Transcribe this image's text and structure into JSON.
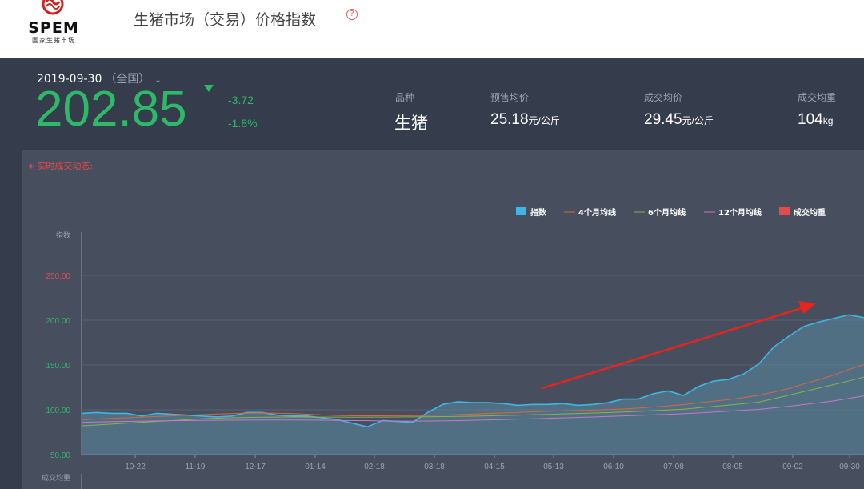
{
  "header": {
    "logo_text": "SPEM",
    "logo_sub": "国家生猪市场",
    "title": "生猪市场（交易）价格指数",
    "help_glyph": "?"
  },
  "summary": {
    "date": "2019-09-30",
    "region": "（全国）",
    "index_value": "202.85",
    "change_abs": "-3.72",
    "change_pct": "-1.8%",
    "variety_label": "品种",
    "variety_value": "生猪",
    "presale_label": "预售均价",
    "presale_value": "25.18",
    "presale_unit": "元/公斤",
    "deal_label": "成交均价",
    "deal_value": "29.45",
    "deal_unit": "元/公斤",
    "weight_label": "成交均重",
    "weight_value": "104",
    "weight_unit": "kg"
  },
  "ticker": {
    "label": "实时成交动态:"
  },
  "colors": {
    "index": "#3db7e4",
    "ma4": "#d9683e",
    "ma6": "#8fb04a",
    "ma12": "#c678c6",
    "weight": "#e84a4a",
    "up": "#2fb868",
    "arrow": "#e8241c"
  },
  "chart_data": {
    "type": "area",
    "ylabel": "指数",
    "ylabel2": "成交均重",
    "ylim": [
      50,
      250
    ],
    "y_ticks": [
      "250.00",
      "200.00",
      "150.00",
      "100.00",
      "50.00"
    ],
    "x_ticks": [
      "10-22",
      "11-19",
      "12-17",
      "01-14",
      "02-18",
      "03-18",
      "04-15",
      "05-13",
      "06-10",
      "07-08",
      "08-05",
      "09-02",
      "09-30"
    ],
    "legend_position": "top-right",
    "series": [
      {
        "name": "指数",
        "key": "index",
        "values": [
          96,
          97,
          96,
          96,
          93,
          96,
          95,
          94,
          93,
          92,
          93,
          97,
          97,
          94,
          93,
          93,
          91,
          89,
          85,
          81,
          88,
          87,
          86,
          97,
          106,
          109,
          108,
          108,
          107,
          105,
          106,
          106,
          107,
          105,
          106,
          108,
          112,
          112,
          118,
          121,
          116,
          126,
          132,
          134,
          140,
          151,
          170,
          182,
          193,
          198,
          202,
          206,
          202.85
        ]
      },
      {
        "name": "4个月均线",
        "key": "ma4",
        "values": [
          89,
          89.7,
          90.4,
          91.1,
          91.8,
          92.5,
          93.2,
          93.9,
          94.6,
          95.3,
          95.9,
          96.2,
          96.4,
          96.2,
          95.8,
          95.1,
          94.3,
          93.6,
          93.3,
          93.3,
          93.3,
          93.4,
          93.5,
          93.7,
          94.1,
          94.6,
          95.2,
          95.9,
          96.5,
          97.1,
          97.8,
          98.3,
          98.8,
          99.2,
          99.6,
          100.2,
          100.9,
          101.9,
          103.1,
          104.4,
          105.8,
          107.7,
          109.6,
          111.4,
          113.6,
          116.2,
          119.8,
          123.7,
          128.8,
          133.6,
          138.8,
          145.1,
          150.5
        ]
      },
      {
        "name": "6个月均线",
        "key": "ma6",
        "values": [
          82,
          83,
          84,
          85,
          86,
          87,
          88,
          89,
          90,
          90.6,
          91.1,
          91.4,
          91.7,
          91.9,
          92,
          91.9,
          91.8,
          91.8,
          91.7,
          91.8,
          91.9,
          92,
          92.1,
          92.2,
          92.4,
          92.6,
          92.9,
          93.2,
          93.6,
          94,
          94.5,
          94.9,
          95.4,
          95.9,
          96.4,
          96.9,
          97.5,
          98.2,
          99,
          99.8,
          100.7,
          102.2,
          103.7,
          105.2,
          106.8,
          108.5,
          112.4,
          116.3,
          120.3,
          124.2,
          128.1,
          132.2,
          136.5
        ]
      },
      {
        "name": "12个月均线",
        "key": "ma12",
        "values": [
          86,
          86.4,
          86.8,
          87.1,
          87.3,
          87.6,
          87.8,
          88,
          88.2,
          88.3,
          88.4,
          88.5,
          88.6,
          88.6,
          88.6,
          88.5,
          88.4,
          88.2,
          88,
          87.8,
          87.6,
          87.5,
          87.4,
          87.5,
          87.6,
          87.9,
          88.3,
          88.7,
          89.1,
          89.6,
          90,
          90.5,
          91,
          91.5,
          92,
          92.6,
          93.2,
          93.8,
          94.4,
          95,
          95.7,
          96.5,
          97.4,
          98.4,
          99.4,
          100.5,
          102.1,
          103.9,
          105.8,
          107.8,
          109.9,
          112.7,
          115.5
        ]
      },
      {
        "name": "成交均重",
        "key": "weight",
        "values": []
      }
    ],
    "annotation": "trend-arrow"
  }
}
